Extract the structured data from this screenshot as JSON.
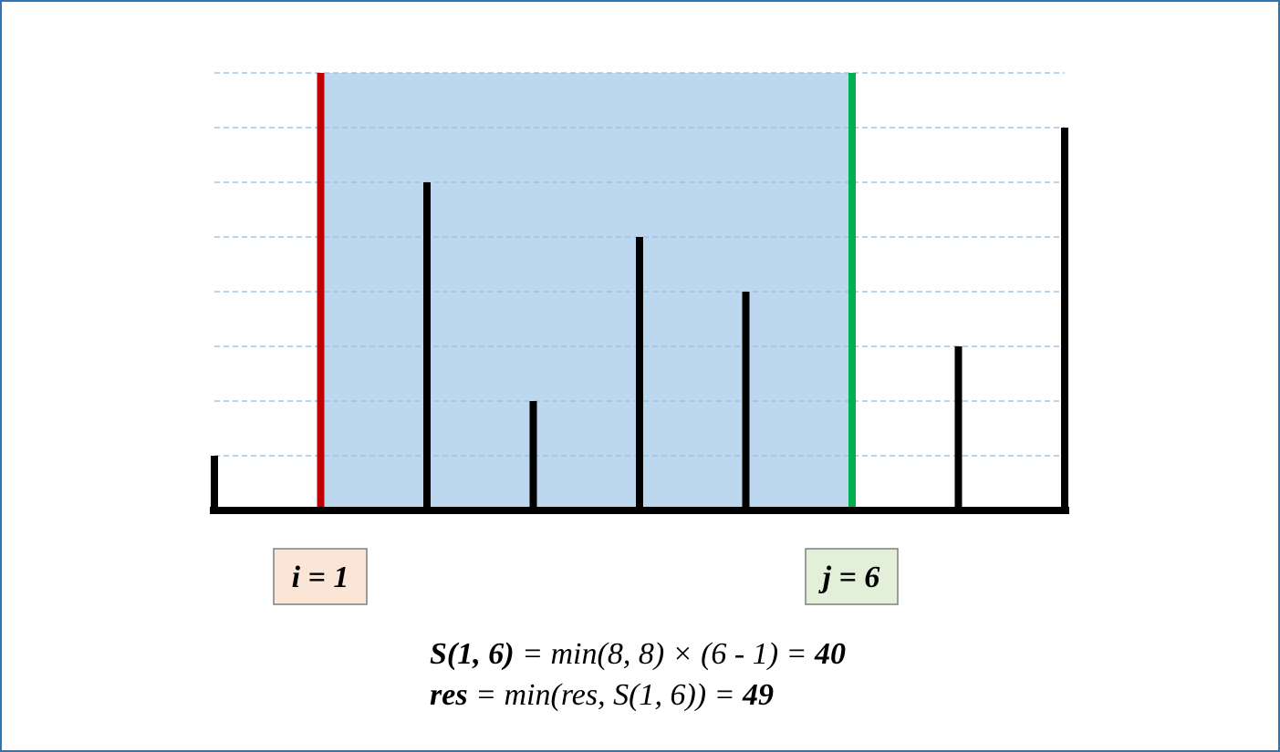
{
  "heights": [
    1,
    8,
    6,
    2,
    5,
    4,
    8,
    3,
    7
  ],
  "left_index": 1,
  "right_index": 6,
  "left_label": "i = 1",
  "right_label": "j = 6",
  "formula": [
    [
      {
        "text": "S(1, 6)",
        "bold": true
      },
      {
        "text": " = min(8, 8) × (6 - 1) = ",
        "bold": false
      },
      {
        "text": "40",
        "bold": true
      }
    ],
    [
      {
        "text": "res",
        "bold": true
      },
      {
        "text": " = min(res, S(1, 6)) = ",
        "bold": false
      },
      {
        "text": "49",
        "bold": true
      }
    ]
  ]
}
